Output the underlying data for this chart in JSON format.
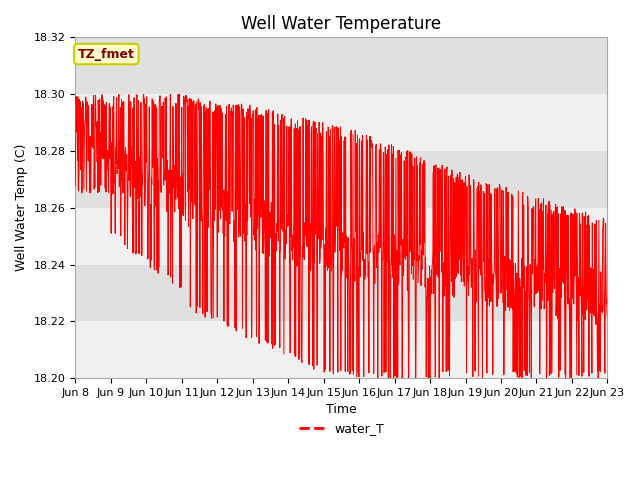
{
  "title": "Well Water Temperature",
  "xlabel": "Time",
  "ylabel": "Well Water Temp (C)",
  "ylim": [
    18.2,
    18.32
  ],
  "yticks": [
    18.2,
    18.22,
    18.24,
    18.26,
    18.28,
    18.3,
    18.32
  ],
  "xtick_labels": [
    "Jun 8",
    "Jun 9",
    "Jun 10",
    "Jun 11",
    "Jun 12",
    "Jun 13",
    "Jun 14",
    "Jun 15",
    "Jun 16",
    "Jun 17",
    "Jun 18",
    "Jun 19",
    "Jun 20",
    "Jun 21",
    "Jun 22",
    "Jun 23"
  ],
  "line_color": "#ff0000",
  "legend_label": "water_T",
  "annotation_text": "TZ_fmet",
  "annotation_bg": "#ffffcc",
  "annotation_fg": "#800000",
  "annotation_edge": "#cccc00",
  "plot_bg": "#ebebeb",
  "band_bg_light": "#f0f0f0",
  "band_bg_dark": "#e0e0e0",
  "fig_bg": "#ffffff",
  "title_fontsize": 12,
  "axis_label_fontsize": 9,
  "tick_fontsize": 8,
  "seed": 42,
  "n_days": 15,
  "start_day": 8,
  "points_per_day": 96
}
